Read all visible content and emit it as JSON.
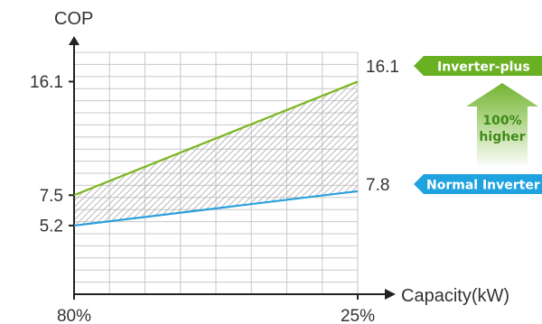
{
  "chart_data": {
    "type": "line",
    "ylabel": "COP",
    "xlabel": "Capacity(kW)",
    "categories": [
      "80%",
      "25%"
    ],
    "ylim": [
      0,
      19
    ],
    "y_ticks": [
      "16.1",
      "7.5",
      "5.2"
    ],
    "grid": true,
    "series": [
      {
        "name": "Inverter-plus",
        "values": [
          7.5,
          16.1
        ],
        "color": "#7ab51d",
        "end_label": "16.1"
      },
      {
        "name": "Normal Inverter",
        "values": [
          5.2,
          7.8
        ],
        "color": "#2aa0dc",
        "end_label": "7.8"
      }
    ],
    "annotation": {
      "line1": "100%",
      "line2": "higher"
    },
    "colors": {
      "fill_hatch": "#a9a9a9",
      "grid": "#c8c8c8",
      "tag_green": "#6ab023",
      "tag_blue": "#1fa3e0"
    }
  }
}
